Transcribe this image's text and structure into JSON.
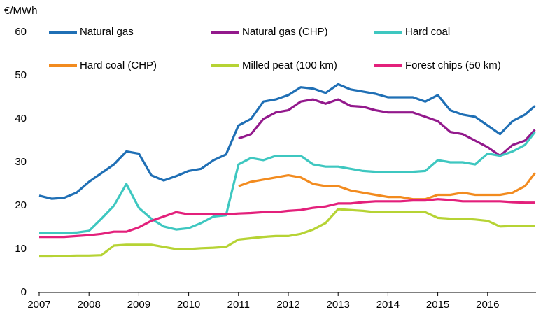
{
  "chart_data": {
    "type": "line",
    "y_label": "€/MWh",
    "x": [
      2007,
      2007.25,
      2007.5,
      2007.75,
      2008,
      2008.25,
      2008.5,
      2008.75,
      2009,
      2009.25,
      2009.5,
      2009.75,
      2010,
      2010.25,
      2010.5,
      2010.75,
      2011,
      2011.25,
      2011.5,
      2011.75,
      2012,
      2012.25,
      2012.5,
      2012.75,
      2013,
      2013.25,
      2013.5,
      2013.75,
      2014,
      2014.25,
      2014.5,
      2014.75,
      2015,
      2015.25,
      2015.5,
      2015.75,
      2016,
      2016.25,
      2016.5,
      2016.75,
      2016.95
    ],
    "series": [
      {
        "name": "Natural gas",
        "color": "#1f6fb5",
        "values": [
          22.3,
          21.6,
          21.8,
          23,
          25.5,
          27.5,
          29.5,
          32.5,
          32,
          27,
          25.8,
          26.8,
          28,
          28.5,
          30.5,
          31.8,
          38.5,
          40,
          44,
          44.5,
          45.5,
          47.3,
          47,
          46,
          48,
          46.8,
          46.3,
          45.8,
          45,
          45,
          45,
          44,
          45.5,
          42,
          41,
          40.5,
          38.5,
          36.5,
          39.5,
          41,
          43
        ]
      },
      {
        "name": "Natural gas (CHP)",
        "color": "#93198c",
        "values": [
          null,
          null,
          null,
          null,
          null,
          null,
          null,
          null,
          null,
          null,
          null,
          null,
          null,
          null,
          null,
          null,
          35.5,
          36.5,
          40,
          41.5,
          42,
          44,
          44.5,
          43.5,
          44.5,
          43,
          42.8,
          42,
          41.5,
          41.5,
          41.5,
          40.5,
          39.5,
          37,
          36.5,
          35,
          33.5,
          31.5,
          34,
          35,
          37.5
        ]
      },
      {
        "name": "Hard coal",
        "color": "#3ec7c0",
        "values": [
          13.7,
          13.7,
          13.7,
          13.8,
          14.2,
          17,
          20,
          25,
          19.5,
          17,
          15.2,
          14.5,
          14.8,
          16,
          17.5,
          17.8,
          29.5,
          31,
          30.5,
          31.5,
          31.5,
          31.5,
          29.5,
          29,
          29,
          28.5,
          28,
          27.8,
          27.8,
          27.8,
          27.8,
          28,
          30.5,
          30,
          30,
          29.5,
          32,
          31.5,
          32.5,
          34,
          37
        ]
      },
      {
        "name": "Hard coal (CHP)",
        "color": "#f28b1f",
        "values": [
          null,
          null,
          null,
          null,
          null,
          null,
          null,
          null,
          null,
          null,
          null,
          null,
          null,
          null,
          null,
          null,
          24.5,
          25.5,
          26,
          26.5,
          27,
          26.5,
          25,
          24.5,
          24.5,
          23.5,
          23,
          22.5,
          22,
          22,
          21.5,
          21.5,
          22.5,
          22.5,
          23,
          22.5,
          22.5,
          22.5,
          23,
          24.5,
          27.5
        ]
      },
      {
        "name": "Milled peat (100 km)",
        "color": "#b6d334",
        "values": [
          8.3,
          8.3,
          8.4,
          8.5,
          8.5,
          8.6,
          10.8,
          11,
          11,
          11,
          10.5,
          10,
          10,
          10.2,
          10.3,
          10.5,
          12.2,
          12.5,
          12.8,
          13,
          13,
          13.5,
          14.5,
          16,
          19.2,
          19,
          18.8,
          18.5,
          18.5,
          18.5,
          18.5,
          18.5,
          17.2,
          17,
          17,
          16.8,
          16.5,
          15.2,
          15.3,
          15.3,
          15.3
        ]
      },
      {
        "name": "Forest chips (50 km)",
        "color": "#e3207b",
        "values": [
          12.8,
          12.8,
          12.8,
          13,
          13.2,
          13.5,
          14,
          14,
          15,
          16.5,
          17.5,
          18.5,
          18,
          18,
          18,
          18,
          18.2,
          18.3,
          18.5,
          18.5,
          18.8,
          19,
          19.5,
          19.8,
          20.5,
          20.5,
          20.8,
          21,
          21,
          21,
          21.2,
          21.2,
          21.5,
          21.3,
          21,
          21,
          21,
          21,
          20.8,
          20.7,
          20.7
        ]
      }
    ],
    "xlim": [
      2007,
      2017
    ],
    "xticks": [
      2007,
      2008,
      2009,
      2010,
      2011,
      2012,
      2013,
      2014,
      2015,
      2016
    ],
    "ylim": [
      0,
      60
    ],
    "yticks": [
      0,
      10,
      20,
      30,
      40,
      50,
      60
    ],
    "legend": "top",
    "grid": false
  }
}
